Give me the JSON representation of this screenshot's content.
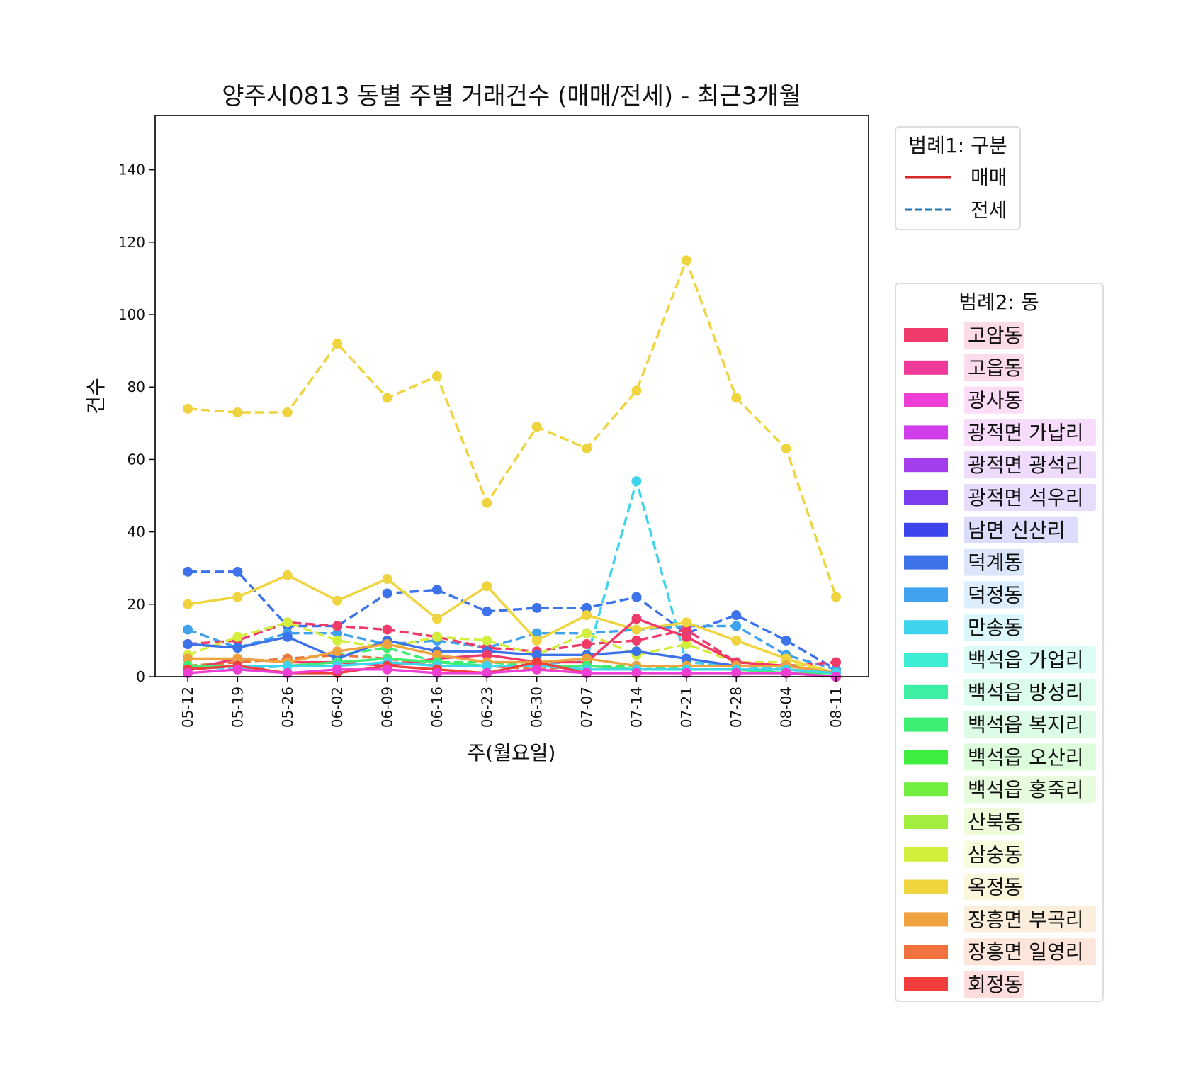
{
  "chart_data": {
    "type": "line",
    "title": "양주시0813 동별 주별 거래건수 (매매/전세) - 최근3개월",
    "xlabel": "주(월요일)",
    "ylabel": "건수",
    "ylim": [
      0,
      155
    ],
    "yticks": [
      0,
      20,
      40,
      60,
      80,
      100,
      120,
      140
    ],
    "categories": [
      "05-12",
      "05-19",
      "05-26",
      "06-02",
      "06-09",
      "06-16",
      "06-23",
      "06-30",
      "07-07",
      "07-14",
      "07-21",
      "07-28",
      "08-04",
      "08-11"
    ],
    "grid": false,
    "legend1": {
      "title": "범례1: 구분",
      "placement": "top-right-outside",
      "items": [
        {
          "label": "매매",
          "style": "solid",
          "color": "#d62728"
        },
        {
          "label": "전세",
          "style": "dashed",
          "color": "#1f77b4"
        }
      ]
    },
    "legend2": {
      "title": "범례2: 동",
      "placement": "right-outside",
      "items": [
        {
          "label": "고암동",
          "color": "#f03a6a"
        },
        {
          "label": "고읍동",
          "color": "#f03a9a"
        },
        {
          "label": "광사동",
          "color": "#ee3ed4"
        },
        {
          "label": "광적면 가납리",
          "color": "#d03eec"
        },
        {
          "label": "광적면 광석리",
          "color": "#a43eec"
        },
        {
          "label": "광적면 석우리",
          "color": "#7a3eee"
        },
        {
          "label": "남면 신산리",
          "color": "#3c44ee"
        },
        {
          "label": "덕계동",
          "color": "#3c72ea"
        },
        {
          "label": "덕정동",
          "color": "#3ea2ee"
        },
        {
          "label": "만송동",
          "color": "#3ed4ee"
        },
        {
          "label": "백석읍 가업리",
          "color": "#3eeed4"
        },
        {
          "label": "백석읍 방성리",
          "color": "#3eeea2"
        },
        {
          "label": "백석읍 복지리",
          "color": "#3eee72"
        },
        {
          "label": "백석읍 오산리",
          "color": "#3eee3e"
        },
        {
          "label": "백석읍 홍죽리",
          "color": "#72ee3e"
        },
        {
          "label": "산북동",
          "color": "#a2ee3e"
        },
        {
          "label": "삼숭동",
          "color": "#d4ee3e"
        },
        {
          "label": "옥정동",
          "color": "#f0d43e"
        },
        {
          "label": "장흥면 부곡리",
          "color": "#f0a23e"
        },
        {
          "label": "장흥면 일영리",
          "color": "#f0723e"
        },
        {
          "label": "회정동",
          "color": "#f03e3e"
        }
      ]
    },
    "series": [
      {
        "dong": "옥정동",
        "type": "전세",
        "color": "#f0d43e",
        "values": [
          74,
          73,
          73,
          92,
          77,
          83,
          48,
          69,
          63,
          79,
          115,
          77,
          63,
          22
        ]
      },
      {
        "dong": "만송동",
        "type": "전세",
        "color": "#3ed4ee",
        "values": [
          3,
          2,
          3,
          3,
          4,
          3,
          3,
          3,
          5,
          54,
          4,
          3,
          2,
          1
        ]
      },
      {
        "dong": "덕계동",
        "type": "전세",
        "color": "#3c72ea",
        "values": [
          29,
          29,
          14,
          14,
          23,
          24,
          18,
          19,
          19,
          22,
          12,
          17,
          10,
          2
        ]
      },
      {
        "dong": "덕정동",
        "type": "전세",
        "color": "#3ea2ee",
        "values": [
          13,
          8,
          12,
          12,
          9,
          10,
          8,
          12,
          12,
          13,
          14,
          14,
          6,
          2
        ]
      },
      {
        "dong": "고암동",
        "type": "전세",
        "color": "#f03a6a",
        "values": [
          9,
          10,
          15,
          14,
          13,
          11,
          8,
          7,
          9,
          10,
          13,
          4,
          3,
          4
        ]
      },
      {
        "dong": "삼숭동",
        "type": "전세",
        "color": "#d4ee3e",
        "values": [
          6,
          11,
          15,
          10,
          8,
          11,
          10,
          6,
          12,
          6,
          9,
          4,
          4,
          1
        ]
      },
      {
        "dong": "백석읍 복지리",
        "type": "전세",
        "color": "#3eee72",
        "values": [
          3,
          4,
          5,
          6,
          8,
          4,
          4,
          3,
          3,
          3,
          2,
          2,
          1,
          1
        ]
      },
      {
        "dong": "장흥면 일영리",
        "type": "전세",
        "color": "#f0723e",
        "values": [
          3,
          4,
          5,
          6,
          5,
          3,
          3,
          2,
          3,
          2,
          2,
          2,
          1,
          0
        ]
      },
      {
        "dong": "옥정동",
        "type": "매매",
        "color": "#f0d43e",
        "values": [
          20,
          22,
          28,
          21,
          27,
          16,
          25,
          10,
          17,
          13,
          15,
          10,
          5,
          1
        ]
      },
      {
        "dong": "덕계동",
        "type": "매매",
        "color": "#3c72ea",
        "values": [
          9,
          8,
          11,
          5,
          10,
          7,
          7,
          6,
          6,
          7,
          5,
          3,
          3,
          1
        ]
      },
      {
        "dong": "고암동",
        "type": "매매",
        "color": "#f03a6a",
        "values": [
          2,
          5,
          4,
          4,
          3,
          5,
          6,
          4,
          4,
          16,
          11,
          4,
          3,
          1
        ]
      },
      {
        "dong": "장흥면 부곡리",
        "type": "매매",
        "color": "#f0a23e",
        "values": [
          5,
          5,
          4,
          7,
          9,
          6,
          4,
          4,
          5,
          3,
          3,
          3,
          3,
          1
        ]
      },
      {
        "dong": "백석읍 복지리",
        "type": "매매",
        "color": "#3eee72",
        "values": [
          3,
          3,
          3,
          4,
          5,
          4,
          3,
          3,
          3,
          2,
          2,
          2,
          1,
          1
        ]
      },
      {
        "dong": "만송동",
        "type": "매매",
        "color": "#3ed4ee",
        "values": [
          2,
          3,
          3,
          3,
          4,
          3,
          3,
          3,
          2,
          2,
          2,
          2,
          2,
          1
        ]
      },
      {
        "dong": "회정동",
        "type": "매매",
        "color": "#f03e3e",
        "values": [
          2,
          3,
          1,
          1,
          3,
          2,
          1,
          4,
          1,
          1,
          1,
          1,
          1,
          0
        ]
      },
      {
        "dong": "광사동",
        "type": "매매",
        "color": "#ee3ed4",
        "values": [
          1,
          2,
          1,
          2,
          2,
          1,
          1,
          2,
          1,
          1,
          1,
          1,
          1,
          0
        ]
      }
    ]
  }
}
